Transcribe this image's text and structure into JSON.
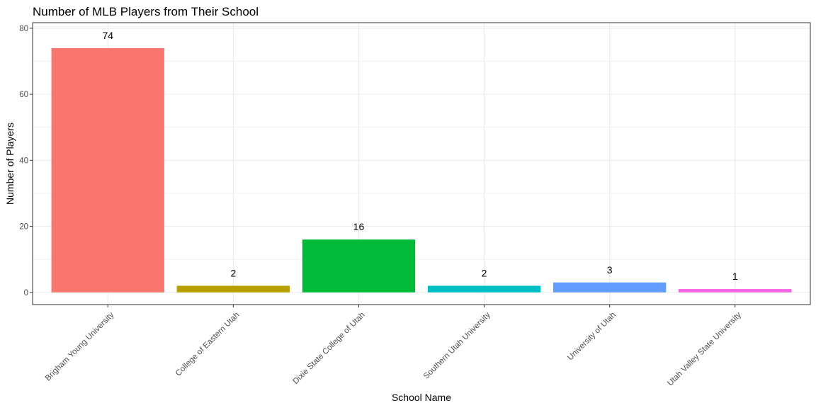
{
  "chart_data": {
    "type": "bar",
    "title": "Number of MLB Players from Their School",
    "xlabel": "School Name",
    "ylabel": "Number of Players",
    "categories": [
      "Brigham Young University",
      "College of Eastern Utah",
      "Dixie State College of Utah",
      "Southern Utah University",
      "University of Utah",
      "Utah Valley State University"
    ],
    "values": [
      74,
      2,
      16,
      2,
      3,
      1
    ],
    "data_labels": [
      "74",
      "2",
      "16",
      "2",
      "3",
      "1"
    ],
    "colors": [
      "#F8766D",
      "#B79F00",
      "#00BA38",
      "#00BFC4",
      "#619CFF",
      "#F564E3"
    ],
    "ylim": [
      -3.7,
      81.7
    ],
    "yticks": [
      0,
      20,
      40,
      60,
      80
    ],
    "ytick_labels": [
      "0",
      "20",
      "40",
      "60",
      "80"
    ],
    "grid": true,
    "legend": "none",
    "panel_border_color": "#333333",
    "grid_color": "#ebebeb"
  }
}
